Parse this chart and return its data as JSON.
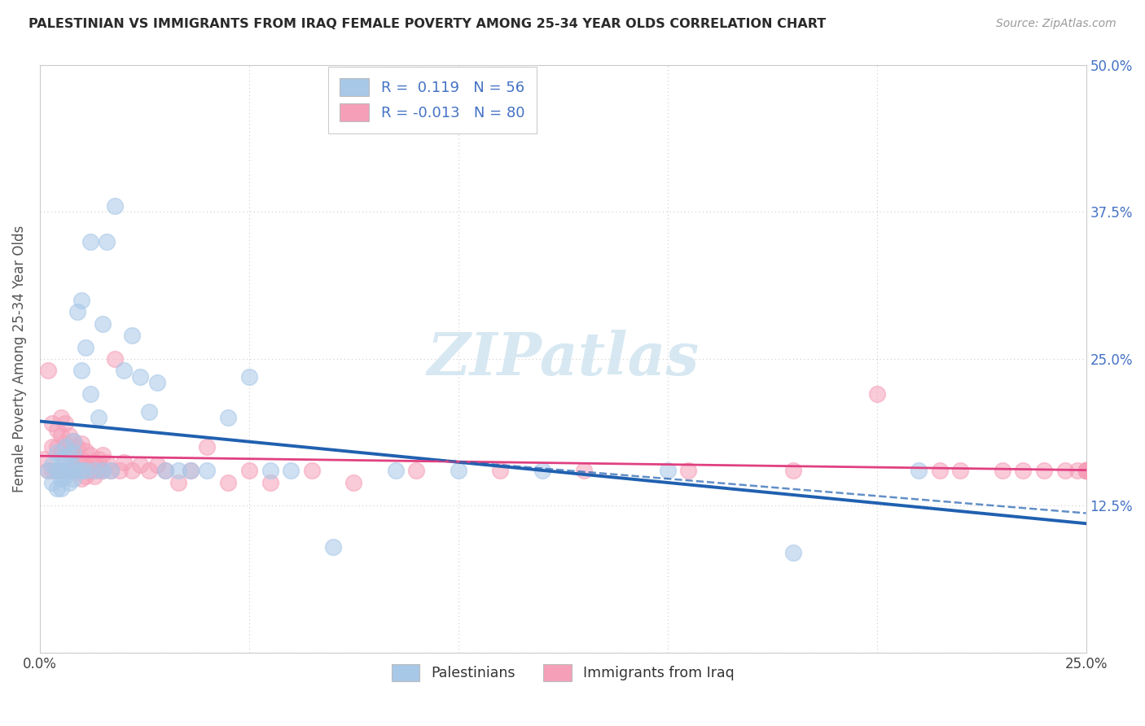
{
  "title": "PALESTINIAN VS IMMIGRANTS FROM IRAQ FEMALE POVERTY AMONG 25-34 YEAR OLDS CORRELATION CHART",
  "source": "Source: ZipAtlas.com",
  "ylabel": "Female Poverty Among 25-34 Year Olds",
  "legend_labels": [
    "Palestinians",
    "Immigrants from Iraq"
  ],
  "r_palestinians": 0.119,
  "n_palestinians": 56,
  "r_iraq": -0.013,
  "n_iraq": 80,
  "xlim": [
    0.0,
    0.25
  ],
  "ylim": [
    0.0,
    0.5
  ],
  "color_palestinians": "#a8c8e8",
  "color_iraq": "#f5a0b8",
  "trendline_color_palestinians": "#2060b0",
  "trendline_color_iraq": "#e04080",
  "axis_label_color": "#4472c4",
  "background_color": "#ffffff",
  "grid_color": "#cccccc",
  "palestinians_x": [
    0.002,
    0.003,
    0.003,
    0.004,
    0.004,
    0.004,
    0.005,
    0.005,
    0.005,
    0.005,
    0.006,
    0.006,
    0.006,
    0.007,
    0.007,
    0.007,
    0.008,
    0.008,
    0.008,
    0.008,
    0.009,
    0.009,
    0.01,
    0.01,
    0.01,
    0.011,
    0.011,
    0.012,
    0.012,
    0.013,
    0.014,
    0.015,
    0.015,
    0.016,
    0.017,
    0.018,
    0.02,
    0.022,
    0.024,
    0.026,
    0.028,
    0.03,
    0.033,
    0.036,
    0.04,
    0.045,
    0.05,
    0.055,
    0.06,
    0.07,
    0.085,
    0.1,
    0.12,
    0.15,
    0.18,
    0.21
  ],
  "palestinians_y": [
    0.155,
    0.16,
    0.145,
    0.17,
    0.155,
    0.14,
    0.165,
    0.155,
    0.148,
    0.14,
    0.175,
    0.162,
    0.15,
    0.168,
    0.155,
    0.145,
    0.18,
    0.17,
    0.158,
    0.148,
    0.29,
    0.155,
    0.3,
    0.24,
    0.155,
    0.26,
    0.155,
    0.35,
    0.22,
    0.155,
    0.2,
    0.28,
    0.155,
    0.35,
    0.155,
    0.38,
    0.24,
    0.27,
    0.235,
    0.205,
    0.23,
    0.155,
    0.155,
    0.155,
    0.155,
    0.2,
    0.235,
    0.155,
    0.155,
    0.09,
    0.155,
    0.155,
    0.155,
    0.155,
    0.085,
    0.155
  ],
  "iraq_x": [
    0.001,
    0.002,
    0.002,
    0.003,
    0.003,
    0.003,
    0.004,
    0.004,
    0.004,
    0.005,
    0.005,
    0.005,
    0.005,
    0.006,
    0.006,
    0.006,
    0.007,
    0.007,
    0.007,
    0.008,
    0.008,
    0.008,
    0.009,
    0.009,
    0.009,
    0.01,
    0.01,
    0.01,
    0.01,
    0.011,
    0.011,
    0.011,
    0.012,
    0.012,
    0.013,
    0.013,
    0.014,
    0.014,
    0.015,
    0.015,
    0.016,
    0.017,
    0.018,
    0.019,
    0.02,
    0.022,
    0.024,
    0.026,
    0.028,
    0.03,
    0.033,
    0.036,
    0.04,
    0.045,
    0.05,
    0.055,
    0.065,
    0.075,
    0.09,
    0.11,
    0.13,
    0.155,
    0.18,
    0.2,
    0.215,
    0.22,
    0.23,
    0.235,
    0.24,
    0.245,
    0.248,
    0.25,
    0.25,
    0.25,
    0.25,
    0.25,
    0.25,
    0.25,
    0.25,
    0.25
  ],
  "iraq_y": [
    0.165,
    0.24,
    0.155,
    0.195,
    0.175,
    0.155,
    0.19,
    0.175,
    0.155,
    0.2,
    0.185,
    0.17,
    0.155,
    0.195,
    0.178,
    0.155,
    0.185,
    0.17,
    0.155,
    0.18,
    0.168,
    0.155,
    0.175,
    0.162,
    0.155,
    0.178,
    0.165,
    0.155,
    0.148,
    0.172,
    0.16,
    0.15,
    0.168,
    0.155,
    0.162,
    0.15,
    0.165,
    0.155,
    0.168,
    0.155,
    0.162,
    0.155,
    0.25,
    0.155,
    0.162,
    0.155,
    0.16,
    0.155,
    0.16,
    0.155,
    0.145,
    0.155,
    0.175,
    0.145,
    0.155,
    0.145,
    0.155,
    0.145,
    0.155,
    0.155,
    0.155,
    0.155,
    0.155,
    0.22,
    0.155,
    0.155,
    0.155,
    0.155,
    0.155,
    0.155,
    0.155,
    0.155,
    0.155,
    0.155,
    0.155,
    0.155,
    0.155,
    0.155,
    0.155,
    0.155
  ]
}
